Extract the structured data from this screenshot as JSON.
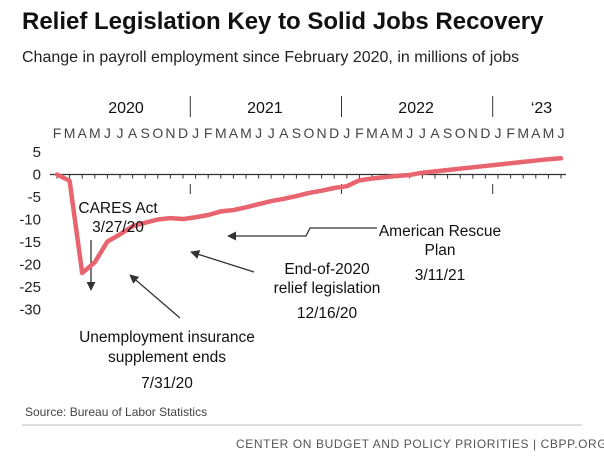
{
  "header": {
    "title": "Relief Legislation Key to Solid Jobs Recovery",
    "subtitle": "Change in payroll employment since February 2020, in millions of jobs"
  },
  "footer": {
    "source": "Source: Bureau of Labor Statistics",
    "credit": "CENTER ON BUDGET AND POLICY PRIORITIES | CBPP.ORG"
  },
  "colors": {
    "line": "#e8646f",
    "axis": "#333333",
    "divider": "#bbbbbb"
  },
  "chart_data": {
    "type": "line",
    "title": "Relief Legislation Key to Solid Jobs Recovery",
    "subtitle": "Change in payroll employment since February 2020, in millions of jobs",
    "xlabel": "",
    "ylabel": "",
    "ylim": [
      -30,
      5
    ],
    "yticks": [
      5,
      0,
      -5,
      -10,
      -15,
      -20,
      -25,
      -30
    ],
    "year_labels": [
      "2020",
      "2021",
      "2022",
      "‘23"
    ],
    "month_letters": [
      "F",
      "M",
      "A",
      "M",
      "J",
      "J",
      "A",
      "S",
      "O",
      "N",
      "D",
      "J",
      "F",
      "M",
      "A",
      "M",
      "J",
      "J",
      "A",
      "S",
      "O",
      "N",
      "D",
      "J",
      "F",
      "M",
      "A",
      "M",
      "J",
      "J",
      "A",
      "S",
      "O",
      "N",
      "D",
      "J",
      "F",
      "M",
      "A",
      "M",
      "J"
    ],
    "x": [
      "2020-02",
      "2020-03",
      "2020-04",
      "2020-05",
      "2020-06",
      "2020-07",
      "2020-08",
      "2020-09",
      "2020-10",
      "2020-11",
      "2020-12",
      "2021-01",
      "2021-02",
      "2021-03",
      "2021-04",
      "2021-05",
      "2021-06",
      "2021-07",
      "2021-08",
      "2021-09",
      "2021-10",
      "2021-11",
      "2021-12",
      "2022-01",
      "2022-02",
      "2022-03",
      "2022-04",
      "2022-05",
      "2022-06",
      "2022-07",
      "2022-08",
      "2022-09",
      "2022-10",
      "2022-11",
      "2022-12",
      "2023-01",
      "2023-02",
      "2023-03",
      "2023-04",
      "2023-05",
      "2023-06"
    ],
    "series": [
      {
        "values": [
          0,
          -1.4,
          -21.9,
          -19.5,
          -14.9,
          -13.3,
          -11.5,
          -10.7,
          -10.0,
          -9.7,
          -9.9,
          -9.5,
          -9.0,
          -8.2,
          -7.9,
          -7.3,
          -6.6,
          -5.9,
          -5.4,
          -4.8,
          -4.1,
          -3.6,
          -3.0,
          -2.6,
          -1.3,
          -0.9,
          -0.6,
          -0.3,
          -0.1,
          0.4,
          0.7,
          1.0,
          1.3,
          1.6,
          1.9,
          2.2,
          2.5,
          2.8,
          3.1,
          3.4,
          3.6
        ]
      }
    ],
    "annotations": [
      {
        "lines": [
          "CARES Act",
          "3/27/20"
        ]
      },
      {
        "lines": [
          "Unemployment insurance",
          "supplement ends",
          "7/31/20"
        ]
      },
      {
        "lines": [
          "End-of-2020",
          "relief legislation",
          "12/16/20"
        ]
      },
      {
        "lines": [
          "American Rescue",
          "Plan",
          "3/11/21"
        ]
      }
    ]
  }
}
